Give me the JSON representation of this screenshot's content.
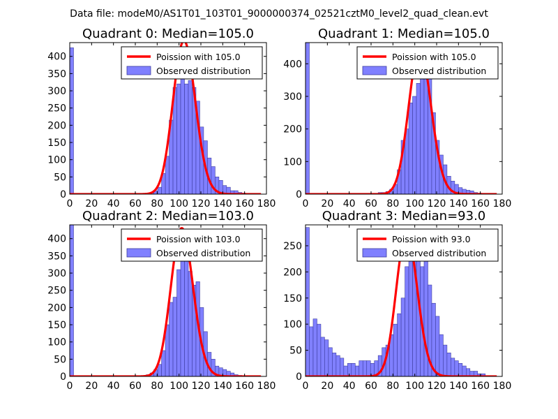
{
  "suptitle": "Data file: modeM0/AS1T01_103T01_9000000374_02521cztM0_level2_quad_clean.evt",
  "colors": {
    "bar_fill": "#8080ff",
    "bar_edge": "#3d3d9e",
    "curve": "#ff0000",
    "background": "#ffffff",
    "axis": "#000000"
  },
  "chart_data": [
    {
      "type": "bar",
      "title": "Quadrant 0: Median=105.0",
      "xlim": [
        0,
        180
      ],
      "ylim": [
        0,
        440
      ],
      "xticks": [
        0,
        20,
        40,
        60,
        80,
        100,
        120,
        140,
        160,
        180
      ],
      "yticks": [
        0,
        50,
        100,
        150,
        200,
        250,
        300,
        350,
        400
      ],
      "legend": {
        "location": "top-right",
        "entries": [
          "Poission with 105.0",
          "Observed distribution"
        ]
      },
      "bin_width": 3.5,
      "bins": [
        [
          0,
          425
        ],
        [
          70,
          2
        ],
        [
          73.5,
          5
        ],
        [
          77,
          10
        ],
        [
          80.5,
          20
        ],
        [
          84,
          60
        ],
        [
          87.5,
          110
        ],
        [
          91,
          215
        ],
        [
          94.5,
          310
        ],
        [
          98,
          320
        ],
        [
          101.5,
          360
        ],
        [
          105,
          320
        ],
        [
          108.5,
          330
        ],
        [
          112,
          310
        ],
        [
          115.5,
          270
        ],
        [
          119,
          195
        ],
        [
          122.5,
          155
        ],
        [
          126,
          105
        ],
        [
          129.5,
          80
        ],
        [
          133,
          50
        ],
        [
          136.5,
          40
        ],
        [
          140,
          25
        ],
        [
          143.5,
          20
        ],
        [
          147,
          10
        ],
        [
          150.5,
          10
        ],
        [
          154,
          5
        ],
        [
          157.5,
          3
        ],
        [
          161,
          2
        ]
      ],
      "curve": {
        "label": "Poission with 105.0",
        "lambda": 105.0,
        "peak": 445,
        "x_range": [
          0,
          175
        ]
      }
    },
    {
      "type": "bar",
      "title": "Quadrant 1: Median=105.0",
      "xlim": [
        0,
        180
      ],
      "ylim": [
        0,
        465
      ],
      "xticks": [
        0,
        20,
        40,
        60,
        80,
        100,
        120,
        140,
        160,
        180
      ],
      "yticks": [
        0,
        100,
        200,
        300,
        400
      ],
      "legend": {
        "location": "top-right",
        "entries": [
          "Poission with 105.0",
          "Observed distribution"
        ]
      },
      "bin_width": 3.5,
      "bins": [
        [
          0,
          465
        ],
        [
          66.5,
          5
        ],
        [
          70,
          5
        ],
        [
          73.5,
          8
        ],
        [
          77,
          15
        ],
        [
          80.5,
          30
        ],
        [
          84,
          75
        ],
        [
          87.5,
          165
        ],
        [
          91,
          200
        ],
        [
          94.5,
          280
        ],
        [
          98,
          300
        ],
        [
          101.5,
          340
        ],
        [
          105,
          400
        ],
        [
          108.5,
          380
        ],
        [
          112,
          360
        ],
        [
          115.5,
          250
        ],
        [
          119,
          165
        ],
        [
          122.5,
          120
        ],
        [
          126,
          90
        ],
        [
          129.5,
          55
        ],
        [
          133,
          40
        ],
        [
          136.5,
          30
        ],
        [
          140,
          20
        ],
        [
          143.5,
          15
        ],
        [
          147,
          12
        ],
        [
          150.5,
          10
        ],
        [
          154,
          5
        ],
        [
          157.5,
          3
        ]
      ],
      "curve": {
        "label": "Poission with 105.0",
        "lambda": 105.0,
        "peak": 445,
        "x_range": [
          0,
          175
        ]
      }
    },
    {
      "type": "bar",
      "title": "Quadrant 2: Median=103.0",
      "xlim": [
        0,
        180
      ],
      "ylim": [
        0,
        440
      ],
      "xticks": [
        0,
        20,
        40,
        60,
        80,
        100,
        120,
        140,
        160,
        180
      ],
      "yticks": [
        0,
        50,
        100,
        150,
        200,
        250,
        300,
        350,
        400
      ],
      "legend": {
        "location": "top-right",
        "entries": [
          "Poission with 103.0",
          "Observed distribution"
        ]
      },
      "bin_width": 3.5,
      "bins": [
        [
          0,
          440
        ],
        [
          70,
          5
        ],
        [
          73.5,
          10
        ],
        [
          77,
          20
        ],
        [
          80.5,
          35
        ],
        [
          84,
          75
        ],
        [
          87.5,
          150
        ],
        [
          91,
          215
        ],
        [
          94.5,
          230
        ],
        [
          98,
          310
        ],
        [
          101.5,
          375
        ],
        [
          105,
          350
        ],
        [
          108.5,
          305
        ],
        [
          112,
          265
        ],
        [
          115.5,
          275
        ],
        [
          119,
          200
        ],
        [
          122.5,
          130
        ],
        [
          126,
          70
        ],
        [
          129.5,
          50
        ],
        [
          133,
          30
        ],
        [
          136.5,
          25
        ],
        [
          140,
          20
        ],
        [
          143.5,
          15
        ],
        [
          147,
          10
        ],
        [
          150.5,
          5
        ],
        [
          154,
          3
        ]
      ],
      "curve": {
        "label": "Poission with 103.0",
        "lambda": 103.0,
        "peak": 430,
        "x_range": [
          0,
          175
        ]
      }
    },
    {
      "type": "bar",
      "title": "Quadrant 3: Median=93.0",
      "xlim": [
        0,
        180
      ],
      "ylim": [
        0,
        290
      ],
      "xticks": [
        0,
        20,
        40,
        60,
        80,
        100,
        120,
        140,
        160,
        180
      ],
      "yticks": [
        0,
        50,
        100,
        150,
        200,
        250
      ],
      "legend": {
        "location": "top-right",
        "entries": [
          "Poission with 93.0",
          "Observed distribution"
        ]
      },
      "bin_width": 3.5,
      "bins": [
        [
          0,
          285
        ],
        [
          3.5,
          95
        ],
        [
          7,
          110
        ],
        [
          10.5,
          100
        ],
        [
          14,
          75
        ],
        [
          17.5,
          70
        ],
        [
          21,
          55
        ],
        [
          24.5,
          45
        ],
        [
          28,
          40
        ],
        [
          31.5,
          35
        ],
        [
          35,
          20
        ],
        [
          38.5,
          25
        ],
        [
          42,
          25
        ],
        [
          45.5,
          20
        ],
        [
          49,
          30
        ],
        [
          52.5,
          30
        ],
        [
          56,
          30
        ],
        [
          59.5,
          25
        ],
        [
          63,
          30
        ],
        [
          66.5,
          40
        ],
        [
          70,
          55
        ],
        [
          73.5,
          60
        ],
        [
          77,
          80
        ],
        [
          80.5,
          100
        ],
        [
          84,
          120
        ],
        [
          87.5,
          150
        ],
        [
          91,
          210
        ],
        [
          94.5,
          230
        ],
        [
          98,
          260
        ],
        [
          101.5,
          225
        ],
        [
          105,
          210
        ],
        [
          108.5,
          240
        ],
        [
          112,
          175
        ],
        [
          115.5,
          140
        ],
        [
          119,
          115
        ],
        [
          122.5,
          80
        ],
        [
          126,
          60
        ],
        [
          129.5,
          45
        ],
        [
          133,
          35
        ],
        [
          136.5,
          30
        ],
        [
          140,
          25
        ],
        [
          143.5,
          20
        ],
        [
          147,
          15
        ],
        [
          150.5,
          10
        ],
        [
          154,
          10
        ],
        [
          157.5,
          5
        ],
        [
          161,
          5
        ]
      ],
      "curve": {
        "label": "Poission with 93.0",
        "lambda": 93.0,
        "peak": 275,
        "x_range": [
          0,
          175
        ]
      }
    }
  ]
}
